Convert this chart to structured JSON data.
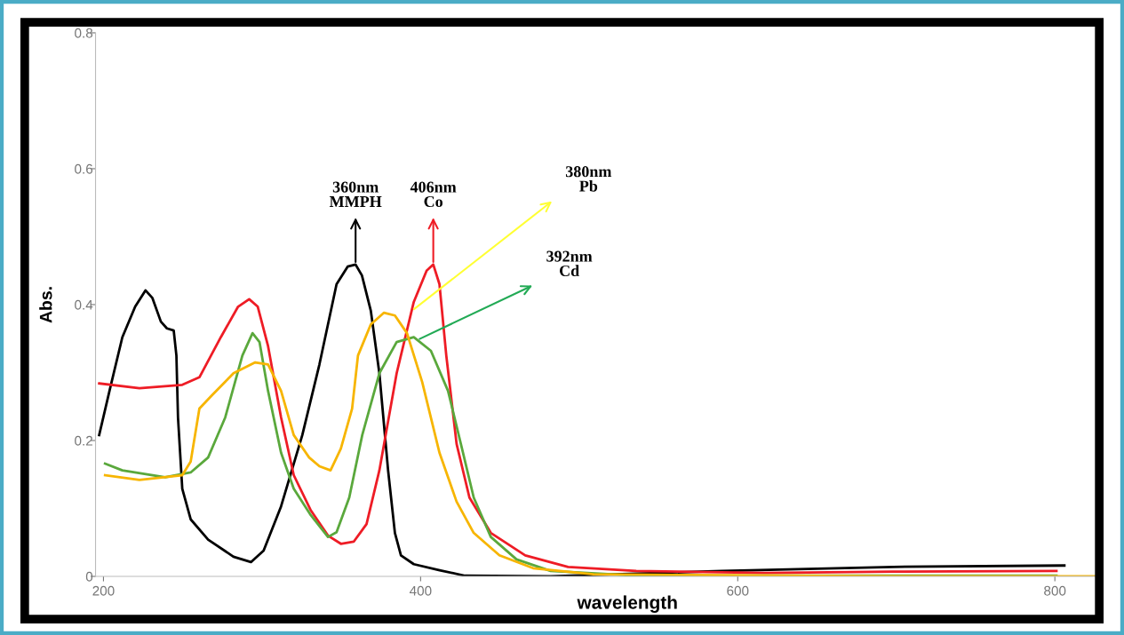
{
  "chart_data": {
    "type": "line",
    "xlabel": "wavelength",
    "ylabel": "Abs.",
    "xlim": [
      195,
      828
    ],
    "xticks": [
      200,
      400,
      600,
      800
    ],
    "ylim": [
      0,
      0.8
    ],
    "yticks": [
      0,
      0.2,
      0.4,
      0.6,
      0.8
    ],
    "grid": false,
    "marker": "none",
    "line_style": "solid",
    "series": [
      {
        "color": "#000000",
        "x": [
          197.3,
          203.8,
          211.9,
          220,
          226.5,
          230.8,
          236.2,
          240,
          244.3,
          246,
          247,
          249.7,
          255,
          266,
          282,
          293,
          301,
          312,
          325.4,
          336.2,
          347,
          354,
          359,
          363,
          368.6,
          374,
          379.5,
          383.8,
          387.6,
          395.7,
          412,
          428,
          482,
          590,
          698,
          806
        ],
        "values": [
          0.208,
          0.273,
          0.352,
          0.397,
          0.421,
          0.41,
          0.375,
          0.365,
          0.362,
          0.325,
          0.234,
          0.129,
          0.084,
          0.054,
          0.029,
          0.021,
          0.038,
          0.103,
          0.208,
          0.312,
          0.43,
          0.456,
          0.459,
          0.443,
          0.391,
          0.299,
          0.156,
          0.064,
          0.031,
          0.018,
          0.009,
          0.001,
          0.0,
          0.008,
          0.014,
          0.016
        ]
      },
      {
        "color": "#ee1c25",
        "x": [
          197.3,
          222.7,
          249.7,
          260.5,
          274,
          284.9,
          291.9,
          297.3,
          303.8,
          312,
          320,
          330.8,
          341.6,
          349.7,
          357.8,
          365.9,
          374,
          384.9,
          395.7,
          403.8,
          408,
          411.9,
          416.2,
          422.7,
          430.8,
          444.3,
          466,
          493,
          536,
          617,
          698,
          801
        ],
        "values": [
          0.284,
          0.277,
          0.282,
          0.293,
          0.352,
          0.397,
          0.408,
          0.397,
          0.339,
          0.234,
          0.149,
          0.097,
          0.06,
          0.048,
          0.051,
          0.077,
          0.156,
          0.299,
          0.404,
          0.45,
          0.459,
          0.43,
          0.325,
          0.195,
          0.116,
          0.064,
          0.031,
          0.014,
          0.008,
          0.005,
          0.007,
          0.008
        ]
      },
      {
        "color": "#5aa83c",
        "x": [
          201,
          211.9,
          238.9,
          255,
          266,
          276.8,
          287.6,
          294,
          298.4,
          303.8,
          312,
          320,
          330.8,
          341.6,
          347,
          355,
          363.2,
          374,
          384.9,
          395.7,
          406.5,
          417.3,
          425.4,
          433.5,
          444.3,
          460.5,
          482,
          536,
          801
        ],
        "values": [
          0.166,
          0.156,
          0.146,
          0.153,
          0.175,
          0.234,
          0.325,
          0.358,
          0.345,
          0.273,
          0.182,
          0.129,
          0.09,
          0.058,
          0.065,
          0.116,
          0.208,
          0.299,
          0.345,
          0.352,
          0.332,
          0.273,
          0.195,
          0.116,
          0.058,
          0.025,
          0.008,
          0.001,
          0.001
        ]
      },
      {
        "color": "#f7b500",
        "x": [
          201,
          222.7,
          249.7,
          255,
          260.5,
          268.6,
          282,
          295.7,
          303.8,
          312,
          320,
          329.7,
          336.2,
          343.2,
          349.7,
          356.8,
          360.5,
          368.6,
          376.8,
          383.8,
          391.4,
          401,
          411.9,
          422.7,
          433.5,
          449.7,
          471,
          509,
          698,
          827
        ],
        "values": [
          0.149,
          0.142,
          0.149,
          0.169,
          0.247,
          0.267,
          0.299,
          0.315,
          0.312,
          0.273,
          0.208,
          0.175,
          0.162,
          0.156,
          0.188,
          0.247,
          0.325,
          0.371,
          0.388,
          0.384,
          0.358,
          0.286,
          0.182,
          0.11,
          0.064,
          0.031,
          0.012,
          0.003,
          0.0,
          0.0
        ]
      }
    ],
    "annotations": [
      {
        "text": "360nm\nMMPH",
        "x": 359,
        "y": 0.459
      },
      {
        "text": "406nm\nCo",
        "x": 408,
        "y": 0.459
      },
      {
        "text": "380nm\nPb",
        "x": 394.6,
        "y": 0.391
      },
      {
        "text": "392nm\nCd",
        "x": 398,
        "y": 0.348
      }
    ]
  }
}
